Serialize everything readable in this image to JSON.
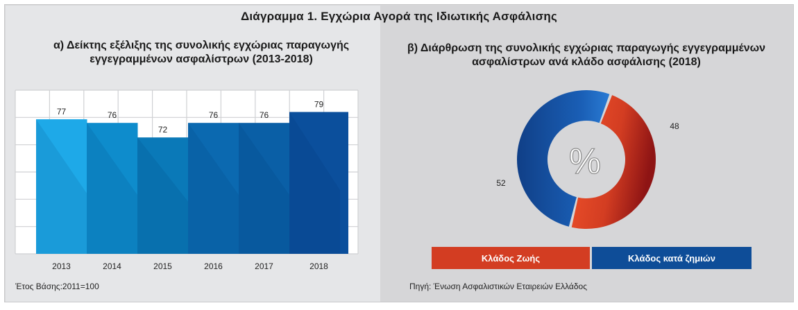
{
  "main_title": "Διάγραμμα 1. Εγχώρια Αγορά της Ιδιωτικής Ασφάλισης",
  "chart_data": [
    {
      "type": "bar",
      "title": "α) Δείκτης εξέλιξης της συνολικής εγχώριας παραγωγής εγγεγραμμένων ασφαλίστρων (2013-2018)",
      "title_lines": [
        "α) Δείκτης εξέλιξης της συνολικής εγχώριας παραγωγής",
        "εγγεγραμμένων ασφαλίστρων (2013-2018)"
      ],
      "categories": [
        "2013",
        "2014",
        "2015",
        "2016",
        "2017",
        "2018"
      ],
      "values": [
        77,
        76,
        72,
        76,
        76,
        79
      ],
      "colors": [
        "#1ea9e8",
        "#0e8ccc",
        "#0a79b8",
        "#0b69b0",
        "#0a5fa6",
        "#0b4f9c"
      ],
      "ylim": [
        40,
        85
      ],
      "grid": true,
      "footnote": "Έτος Βάσης:2011=100"
    },
    {
      "type": "pie",
      "variant": "donut",
      "title": "β) Διάρθρωση της συνολικής εγχώριας παραγωγής εγγεγραμμένων ασφαλίστρων ανά κλάδο ασφάλισης (2018)",
      "title_lines": [
        "β) Διάρθρωση της συνολικής εγχώριας παραγωγής εγγεγραμμένων",
        "ασφαλίστρων ανά κλάδο ασφάλισης (2018)"
      ],
      "center_label": "%",
      "slices": [
        {
          "label": "Κλάδος Ζωής",
          "value": 48,
          "color": "#d33d22"
        },
        {
          "label": "Κλάδος κατά ζημιών",
          "value": 52,
          "color": "#0e4d98"
        }
      ],
      "legend_position": "bottom",
      "source": "Πηγή: Ένωση Ασφαλιστικών Εταιρειών Ελλάδος"
    }
  ]
}
